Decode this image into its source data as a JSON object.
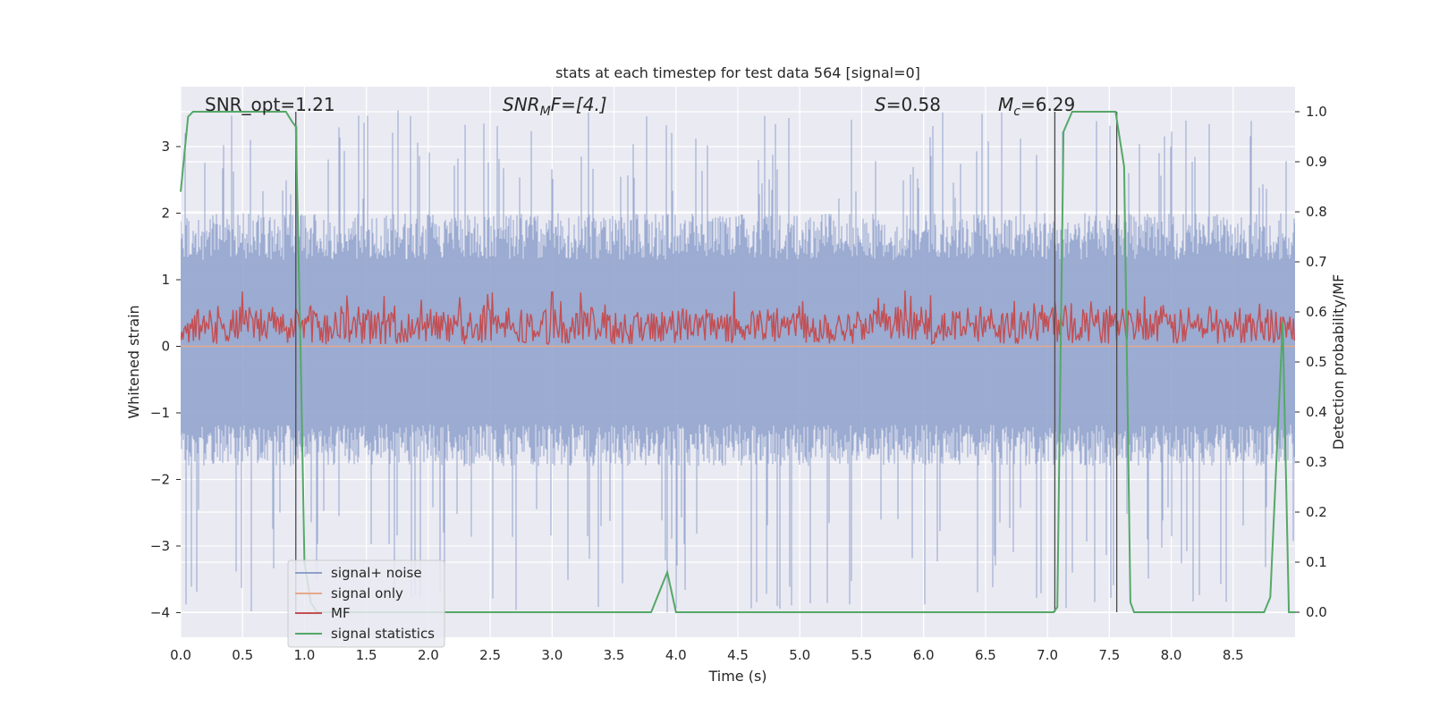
{
  "chart_data": {
    "type": "line",
    "title": "stats at each timestep for test data 564 [signal=0]",
    "xlabel": "Time (s)",
    "ylabel_left": "Whitened strain",
    "ylabel_right": "Detection probability/MF",
    "xlim": [
      0.0,
      9.0
    ],
    "ylim_left": [
      -4.37,
      3.9
    ],
    "ylim_right": [
      -0.05,
      1.05
    ],
    "x_ticks": [
      "0.0",
      "0.5",
      "1.0",
      "1.5",
      "2.0",
      "2.5",
      "3.0",
      "3.5",
      "4.0",
      "4.5",
      "5.0",
      "5.5",
      "6.0",
      "6.5",
      "7.0",
      "7.5",
      "8.0",
      "8.5"
    ],
    "y_ticks_left": [
      "3",
      "2",
      "1",
      "0",
      "−1",
      "−2",
      "−3",
      "−4"
    ],
    "y_ticks_right": [
      "1.0",
      "0.9",
      "0.8",
      "0.7",
      "0.6",
      "0.5",
      "0.4",
      "0.3",
      "0.2",
      "0.1",
      "0.0"
    ],
    "grid": true,
    "legend_position": "lower-left",
    "annotations": {
      "snr_opt": "SNR_opt=1.21",
      "snr_mf_main": "SNR",
      "snr_mf_sub": "M",
      "snr_mf_tail": "F=[4.]",
      "s_main": "S",
      "s_tail": "=0.58",
      "mc_main": "M",
      "mc_sub": "c",
      "mc_tail": "=6.29"
    },
    "series": [
      {
        "name": "signal+ noise",
        "axis": "left",
        "color": "#8da0cb",
        "envelope": {
          "typical_upper": 2.0,
          "typical_lower": -1.8,
          "peak_upper": 3.55,
          "peak_lower": -4.0
        }
      },
      {
        "name": "signal only",
        "axis": "left",
        "color": "#e8a88a",
        "x": [
          0.0,
          9.0
        ],
        "y": [
          0.0,
          0.0
        ]
      },
      {
        "name": "MF",
        "axis": "left",
        "color": "#c44e52",
        "band": {
          "center": 0.3,
          "amplitude": 0.35
        }
      },
      {
        "name": "signal statistics",
        "axis": "right",
        "color": "#55a868",
        "x": [
          0.0,
          0.06,
          0.1,
          0.2,
          0.85,
          0.9,
          0.93,
          0.97,
          1.0,
          1.05,
          1.1,
          3.8,
          3.93,
          4.0,
          7.05,
          7.08,
          7.13,
          7.2,
          7.25,
          7.55,
          7.62,
          7.67,
          7.7,
          8.75,
          8.8,
          8.9,
          8.95,
          9.0
        ],
        "y": [
          0.84,
          0.99,
          1.0,
          1.0,
          1.0,
          0.98,
          0.97,
          0.5,
          0.1,
          0.02,
          0.0,
          0.0,
          0.08,
          0.0,
          0.0,
          0.01,
          0.96,
          1.0,
          1.0,
          1.0,
          0.89,
          0.02,
          0.0,
          0.0,
          0.03,
          0.58,
          0.0,
          0.0
        ]
      }
    ],
    "vertical_lines_x": [
      0.93,
      7.06,
      7.56
    ]
  }
}
